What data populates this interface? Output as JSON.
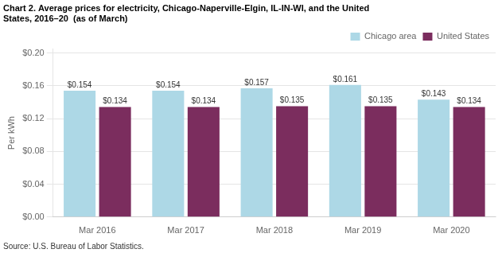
{
  "chart_data": {
    "type": "bar",
    "title": [
      "Chart 2. Average prices for electricity, Chicago-Naperville-Elgin, IL-IN-WI, and the United",
      "States, 2016–20  (as of March)"
    ],
    "y_label": "Per kWh",
    "source": "Source: U.S. Bureau of Labor Statistics.",
    "categories": [
      "Mar 2016",
      "Mar 2017",
      "Mar 2018",
      "Mar 2019",
      "Mar 2020"
    ],
    "series": [
      {
        "name": "Chicago area",
        "color": "#ADD8E6",
        "values": [
          0.154,
          0.154,
          0.157,
          0.161,
          0.143
        ],
        "value_labels": [
          "$0.154",
          "$0.154",
          "$0.157",
          "$0.161",
          "$0.143"
        ]
      },
      {
        "name": "United States",
        "color": "#7B2D5E",
        "values": [
          0.134,
          0.134,
          0.135,
          0.135,
          0.134
        ],
        "value_labels": [
          "$0.134",
          "$0.134",
          "$0.135",
          "$0.135",
          "$0.134"
        ]
      }
    ],
    "ylim": [
      0.0,
      0.205
    ],
    "yticks": [
      {
        "value": 0.0,
        "label": "$0.00"
      },
      {
        "value": 0.04,
        "label": "$0.04"
      },
      {
        "value": 0.08,
        "label": "$0.08"
      },
      {
        "value": 0.12,
        "label": "$0.12"
      },
      {
        "value": 0.16,
        "label": "$0.16"
      },
      {
        "value": 0.2,
        "label": "$0.20"
      }
    ],
    "grid": true,
    "legend": "upper right",
    "data_labels": true
  }
}
